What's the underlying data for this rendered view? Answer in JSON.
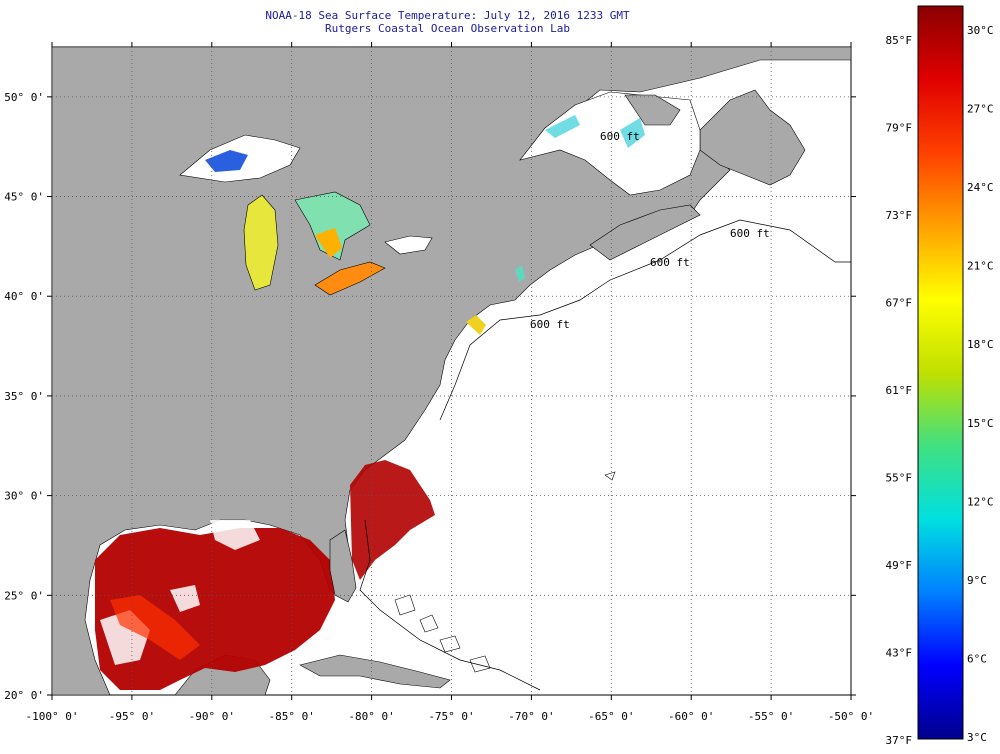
{
  "header": {
    "title": "NOAA-18 Sea Surface Temperature:  July 12, 2016 1233 GMT",
    "subtitle": "Rutgers Coastal Ocean Observation Lab"
  },
  "map": {
    "lon_range": [
      -100,
      -50
    ],
    "lat_range": [
      20,
      52.5
    ],
    "lon_ticks": [
      "-100° 0'",
      "-95° 0'",
      "-90° 0'",
      "-85° 0'",
      "-80° 0'",
      "-75° 0'",
      "-70° 0'",
      "-65° 0'",
      "-60° 0'",
      "-55° 0'",
      "-50° 0'"
    ],
    "lat_ticks": [
      "20° 0'",
      "25° 0'",
      "30° 0'",
      "35° 0'",
      "40° 0'",
      "45° 0'",
      "50° 0'"
    ],
    "depth_contour_labels": [
      "600 ft",
      "600 ft",
      "600 ft",
      "600 ft"
    ],
    "colors": {
      "land": "#a9a9a9",
      "ocean_nodata": "#ffffff",
      "gulf_sst": "#b00000",
      "great_lakes_sst": [
        "#2050e0",
        "#60d8d0",
        "#e0e020",
        "#ff8010"
      ]
    }
  },
  "colorbar": {
    "celsius_labels": [
      "30°C",
      "27°C",
      "24°C",
      "21°C",
      "18°C",
      "15°C",
      "12°C",
      "9°C",
      "6°C",
      "3°C"
    ],
    "fahrenheit_labels": [
      "85°F",
      "79°F",
      "73°F",
      "67°F",
      "61°F",
      "55°F",
      "49°F",
      "43°F",
      "37°F"
    ],
    "stops": [
      "#00008b",
      "#0000ff",
      "#0080ff",
      "#00e0e0",
      "#40e080",
      "#c0e000",
      "#ffff00",
      "#ffa000",
      "#ff4000",
      "#e00000",
      "#8b0000"
    ]
  }
}
